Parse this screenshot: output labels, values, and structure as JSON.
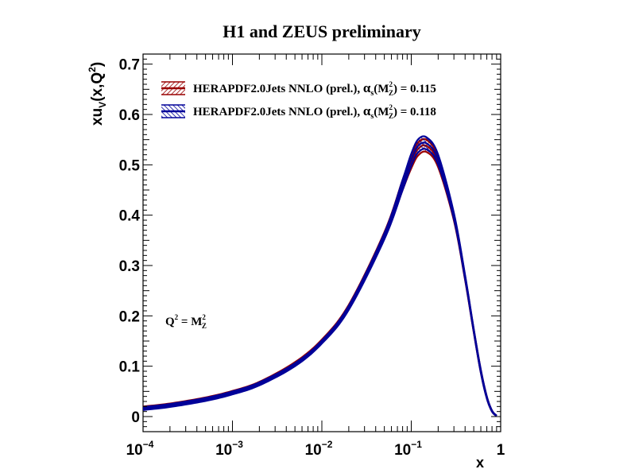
{
  "chart_data": {
    "type": "line",
    "title": "H1 and ZEUS preliminary",
    "xlabel": "x",
    "ylabel": {
      "main": "xu",
      "sub": "V",
      "mid": "(x,Q",
      "sup": "2",
      "end": ")"
    },
    "xscale": "log",
    "xlim": [
      0.0001,
      1
    ],
    "ylim": [
      -0.03,
      0.72
    ],
    "x_ticks": [
      {
        "value": 0.0001,
        "base": "10",
        "exp": "−4"
      },
      {
        "value": 0.001,
        "base": "10",
        "exp": "−3"
      },
      {
        "value": 0.01,
        "base": "10",
        "exp": "−2"
      },
      {
        "value": 0.1,
        "base": "10",
        "exp": "−1"
      },
      {
        "value": 1,
        "base": "1",
        "exp": ""
      }
    ],
    "y_ticks": [
      {
        "value": 0,
        "label": "0"
      },
      {
        "value": 0.1,
        "label": "0.1"
      },
      {
        "value": 0.2,
        "label": "0.2"
      },
      {
        "value": 0.3,
        "label": "0.3"
      },
      {
        "value": 0.4,
        "label": "0.4"
      },
      {
        "value": 0.5,
        "label": "0.5"
      },
      {
        "value": 0.6,
        "label": "0.6"
      },
      {
        "value": 0.7,
        "label": "0.7"
      }
    ],
    "annotation": {
      "q": "Q",
      "q_sup": "2",
      "eq": " = M",
      "m_sup": "2",
      "m_sub": "Z"
    },
    "legend_position": "top-left",
    "x": [
      0.0001,
      0.0002,
      0.0005,
      0.001,
      0.002,
      0.005,
      0.01,
      0.02,
      0.05,
      0.08,
      0.1,
      0.12,
      0.15,
      0.2,
      0.3,
      0.4,
      0.5,
      0.6,
      0.7,
      0.8,
      0.9
    ],
    "series": [
      {
        "name": "HERAPDF2.0Jets NNLO (prel.), αs(M_Z²) = 0.115",
        "legend": {
          "text": "HERAPDF2.0Jets NNLO (prel.), ",
          "alpha": "α",
          "alpha_sub": "s",
          "open": "(M",
          "m_sup": "2",
          "m_sub": "Z",
          "rest": ") = 0.115"
        },
        "color": "#990000",
        "central": [
          0.017,
          0.023,
          0.035,
          0.048,
          0.066,
          0.105,
          0.15,
          0.218,
          0.36,
          0.46,
          0.505,
          0.532,
          0.537,
          0.505,
          0.395,
          0.275,
          0.17,
          0.09,
          0.038,
          0.011,
          0.0015
        ],
        "band_halfwidth": [
          0.003,
          0.003,
          0.003,
          0.003,
          0.003,
          0.003,
          0.003,
          0.004,
          0.006,
          0.01,
          0.012,
          0.013,
          0.012,
          0.01,
          0.006,
          0.004,
          0.003,
          0.003,
          0.002,
          0.001,
          0.0005
        ]
      },
      {
        "name": "HERAPDF2.0Jets NNLO (prel.), αs(M_Z²) = 0.118",
        "legend": {
          "text": "HERAPDF2.0Jets NNLO (prel.), ",
          "alpha": "α",
          "alpha_sub": "s",
          "open": "(M",
          "m_sup": "2",
          "m_sub": "Z",
          "rest": ") = 0.118"
        },
        "color": "#000099",
        "central": [
          0.016,
          0.022,
          0.034,
          0.047,
          0.065,
          0.103,
          0.148,
          0.216,
          0.358,
          0.46,
          0.51,
          0.538,
          0.542,
          0.51,
          0.398,
          0.277,
          0.171,
          0.09,
          0.038,
          0.011,
          0.0015
        ],
        "band_halfwidth": [
          0.003,
          0.003,
          0.003,
          0.003,
          0.003,
          0.003,
          0.003,
          0.004,
          0.006,
          0.01,
          0.012,
          0.013,
          0.012,
          0.01,
          0.006,
          0.004,
          0.003,
          0.003,
          0.002,
          0.001,
          0.0005
        ]
      }
    ]
  }
}
